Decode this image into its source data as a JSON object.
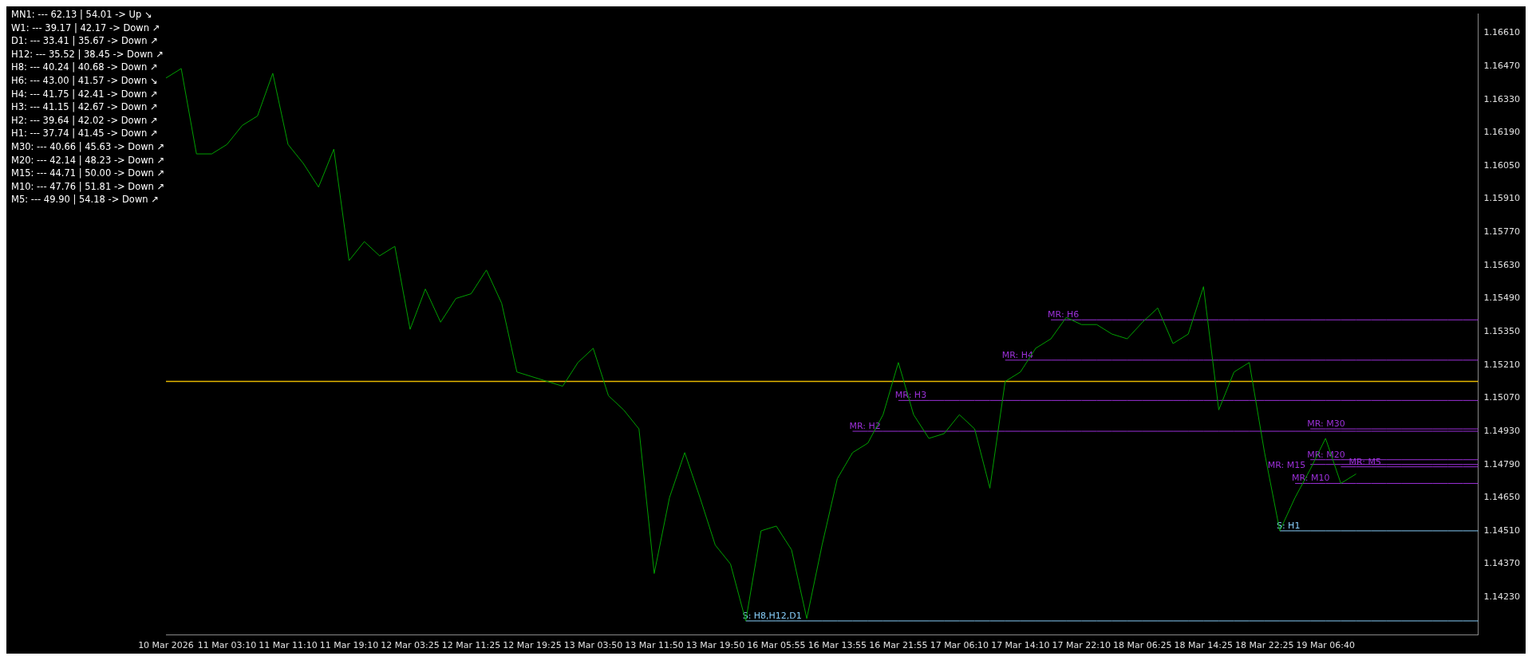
{
  "chart_data": {
    "type": "line",
    "marker": "none",
    "grid": false,
    "legend": false,
    "categories": [
      "10 Mar 2026",
      null,
      null,
      null,
      "11 Mar 03:10",
      null,
      null,
      null,
      "11 Mar 11:10",
      null,
      null,
      null,
      "11 Mar 19:10",
      null,
      null,
      null,
      "12 Mar 03:25",
      null,
      null,
      null,
      "12 Mar 11:25",
      null,
      null,
      null,
      "12 Mar 19:25",
      null,
      null,
      null,
      "13 Mar 03:50",
      null,
      null,
      null,
      "13 Mar 11:50",
      null,
      null,
      null,
      "13 Mar 19:50",
      null,
      null,
      null,
      "16 Mar 05:55",
      null,
      null,
      null,
      "16 Mar 13:55",
      null,
      null,
      null,
      "16 Mar 21:55",
      null,
      null,
      null,
      "17 Mar 06:10",
      null,
      null,
      null,
      "17 Mar 14:10",
      null,
      null,
      null,
      "17 Mar 22:10",
      null,
      null,
      null,
      "18 Mar 06:25",
      null,
      null,
      null,
      "18 Mar 14:25",
      null,
      null,
      null,
      "18 Mar 22:25",
      null,
      null,
      null,
      "19 Mar 06:40",
      null,
      null,
      null,
      null,
      null,
      null,
      null,
      null,
      null,
      null
    ],
    "ylim": [
      1.1407,
      1.1669
    ],
    "yticks": [
      {
        "value": 1.1423,
        "label": "1.14230"
      },
      {
        "value": 1.1437,
        "label": "1.14370"
      },
      {
        "value": 1.1451,
        "label": "1.14510"
      },
      {
        "value": 1.1465,
        "label": "1.14650"
      },
      {
        "value": 1.1479,
        "label": "1.14790"
      },
      {
        "value": 1.1493,
        "label": "1.14930"
      },
      {
        "value": 1.1507,
        "label": "1.15070"
      },
      {
        "value": 1.1521,
        "label": "1.15210"
      },
      {
        "value": 1.1535,
        "label": "1.15350"
      },
      {
        "value": 1.1549,
        "label": "1.15490"
      },
      {
        "value": 1.1563,
        "label": "1.15630"
      },
      {
        "value": 1.1577,
        "label": "1.15770"
      },
      {
        "value": 1.1591,
        "label": "1.15910"
      },
      {
        "value": 1.1605,
        "label": "1.16050"
      },
      {
        "value": 1.1619,
        "label": "1.16190"
      },
      {
        "value": 1.1633,
        "label": "1.16330"
      },
      {
        "value": 1.1647,
        "label": "1.16470"
      },
      {
        "value": 1.1661,
        "label": "1.16610"
      }
    ],
    "series": [
      {
        "color": "#00a000",
        "values": [
          1.1642,
          1.1646,
          1.161,
          1.161,
          1.1614,
          1.1622,
          1.1626,
          1.1644,
          1.1614,
          1.1606,
          1.1596,
          1.1612,
          1.1565,
          1.1573,
          1.1567,
          1.1571,
          1.1536,
          1.1553,
          1.1539,
          1.1549,
          1.1551,
          1.1561,
          1.1547,
          1.1518,
          1.1516,
          1.1514,
          1.1512,
          1.1522,
          1.1528,
          1.1508,
          1.1502,
          1.1494,
          1.1433,
          1.1465,
          1.1484,
          1.1465,
          1.1445,
          1.1437,
          1.1413,
          1.1451,
          1.1453,
          1.1443,
          1.1414,
          1.1445,
          1.1473,
          1.1484,
          1.1488,
          1.15,
          1.1522,
          1.15,
          1.149,
          1.1492,
          1.15,
          1.1494,
          1.1469,
          1.1514,
          1.1518,
          1.1528,
          1.1532,
          1.1541,
          1.1538,
          1.1538,
          1.1534,
          1.1532,
          1.1539,
          1.1545,
          1.153,
          1.1534,
          1.1554,
          1.1502,
          1.1518,
          1.1522,
          1.1484,
          1.1451,
          1.1465,
          1.1477,
          1.149,
          1.1471,
          1.1475,
          null,
          null,
          null,
          null,
          null,
          null,
          null,
          null
        ]
      },
      {
        "name": "MR: H6",
        "color": "#9b30d8",
        "values": [
          null,
          null,
          null,
          null,
          null,
          null,
          null,
          null,
          null,
          null,
          null,
          null,
          null,
          null,
          null,
          null,
          null,
          null,
          null,
          null,
          null,
          null,
          null,
          null,
          null,
          null,
          null,
          null,
          null,
          null,
          null,
          null,
          null,
          null,
          null,
          null,
          null,
          null,
          null,
          null,
          null,
          null,
          null,
          null,
          null,
          null,
          null,
          null,
          null,
          null,
          null,
          null,
          null,
          null,
          null,
          null,
          null,
          null,
          1.154,
          1.154,
          1.154,
          1.154,
          1.154,
          1.154,
          1.154,
          1.154,
          1.154,
          1.154,
          1.154,
          1.154,
          1.154,
          1.154,
          1.154,
          1.154,
          1.154,
          1.154,
          1.154,
          1.154,
          1.154,
          1.154,
          1.154,
          1.154,
          1.154,
          1.154,
          1.154,
          1.154,
          1.154
        ]
      },
      {
        "name": "MR: H4",
        "color": "#9b30d8",
        "values": [
          null,
          null,
          null,
          null,
          null,
          null,
          null,
          null,
          null,
          null,
          null,
          null,
          null,
          null,
          null,
          null,
          null,
          null,
          null,
          null,
          null,
          null,
          null,
          null,
          null,
          null,
          null,
          null,
          null,
          null,
          null,
          null,
          null,
          null,
          null,
          null,
          null,
          null,
          null,
          null,
          null,
          null,
          null,
          null,
          null,
          null,
          null,
          null,
          null,
          null,
          null,
          null,
          null,
          null,
          null,
          1.1523,
          1.1523,
          1.1523,
          1.1523,
          1.1523,
          1.1523,
          1.1523,
          1.1523,
          1.1523,
          1.1523,
          1.1523,
          1.1523,
          1.1523,
          1.1523,
          1.1523,
          1.1523,
          1.1523,
          1.1523,
          1.1523,
          1.1523,
          1.1523,
          1.1523,
          1.1523,
          1.1523,
          1.1523,
          1.1523,
          1.1523,
          1.1523,
          1.1523,
          1.1523,
          1.1523,
          1.1523
        ]
      },
      {
        "name": "MR: H3",
        "color": "#9b30d8",
        "values": [
          null,
          null,
          null,
          null,
          null,
          null,
          null,
          null,
          null,
          null,
          null,
          null,
          null,
          null,
          null,
          null,
          null,
          null,
          null,
          null,
          null,
          null,
          null,
          null,
          null,
          null,
          null,
          null,
          null,
          null,
          null,
          null,
          null,
          null,
          null,
          null,
          null,
          null,
          null,
          null,
          null,
          null,
          null,
          null,
          null,
          null,
          null,
          null,
          1.1506,
          1.1506,
          1.1506,
          1.1506,
          1.1506,
          1.1506,
          1.1506,
          1.1506,
          1.1506,
          1.1506,
          1.1506,
          1.1506,
          1.1506,
          1.1506,
          1.1506,
          1.1506,
          1.1506,
          1.1506,
          1.1506,
          1.1506,
          1.1506,
          1.1506,
          1.1506,
          1.1506,
          1.1506,
          1.1506,
          1.1506,
          1.1506,
          1.1506,
          1.1506,
          1.1506,
          1.1506,
          1.1506,
          1.1506,
          1.1506,
          1.1506,
          1.1506,
          1.1506,
          1.1506
        ]
      },
      {
        "name": "MR: H2",
        "color": "#9b30d8",
        "values": [
          null,
          null,
          null,
          null,
          null,
          null,
          null,
          null,
          null,
          null,
          null,
          null,
          null,
          null,
          null,
          null,
          null,
          null,
          null,
          null,
          null,
          null,
          null,
          null,
          null,
          null,
          null,
          null,
          null,
          null,
          null,
          null,
          null,
          null,
          null,
          null,
          null,
          null,
          null,
          null,
          null,
          null,
          null,
          null,
          null,
          1.1493,
          1.1493,
          1.1493,
          1.1493,
          1.1493,
          1.1493,
          1.1493,
          1.1493,
          1.1493,
          1.1493,
          1.1493,
          1.1493,
          1.1493,
          1.1493,
          1.1493,
          1.1493,
          1.1493,
          1.1493,
          1.1493,
          1.1493,
          1.1493,
          1.1493,
          1.1493,
          1.1493,
          1.1493,
          1.1493,
          1.1493,
          1.1493,
          1.1493,
          1.1493,
          1.1493,
          1.1493,
          1.1493,
          1.1493,
          1.1493,
          1.1493,
          1.1493,
          1.1493,
          1.1493,
          1.1493,
          1.1493,
          1.1493
        ]
      },
      {
        "name": "MR: M30",
        "color": "#9b30d8",
        "values": [
          null,
          null,
          null,
          null,
          null,
          null,
          null,
          null,
          null,
          null,
          null,
          null,
          null,
          null,
          null,
          null,
          null,
          null,
          null,
          null,
          null,
          null,
          null,
          null,
          null,
          null,
          null,
          null,
          null,
          null,
          null,
          null,
          null,
          null,
          null,
          null,
          null,
          null,
          null,
          null,
          null,
          null,
          null,
          null,
          null,
          null,
          null,
          null,
          null,
          null,
          null,
          null,
          null,
          null,
          null,
          null,
          null,
          null,
          null,
          null,
          null,
          null,
          null,
          null,
          null,
          null,
          null,
          null,
          null,
          null,
          null,
          null,
          null,
          null,
          null,
          1.1494,
          1.1494,
          1.1494,
          1.1494,
          1.1494,
          1.1494,
          1.1494,
          1.1494,
          1.1494,
          1.1494,
          1.1494,
          1.1494
        ]
      },
      {
        "name": "MR: M20",
        "color": "#9b30d8",
        "values": [
          null,
          null,
          null,
          null,
          null,
          null,
          null,
          null,
          null,
          null,
          null,
          null,
          null,
          null,
          null,
          null,
          null,
          null,
          null,
          null,
          null,
          null,
          null,
          null,
          null,
          null,
          null,
          null,
          null,
          null,
          null,
          null,
          null,
          null,
          null,
          null,
          null,
          null,
          null,
          null,
          null,
          null,
          null,
          null,
          null,
          null,
          null,
          null,
          null,
          null,
          null,
          null,
          null,
          null,
          null,
          null,
          null,
          null,
          null,
          null,
          null,
          null,
          null,
          null,
          null,
          null,
          null,
          null,
          null,
          null,
          null,
          null,
          null,
          null,
          null,
          1.1481,
          1.1481,
          1.1481,
          1.1481,
          1.1481,
          1.1481,
          1.1481,
          1.1481,
          1.1481,
          1.1481,
          1.1481,
          1.1481
        ]
      },
      {
        "name": "MR: M15",
        "color": "#9b30d8",
        "values": [
          null,
          null,
          null,
          null,
          null,
          null,
          null,
          null,
          null,
          null,
          null,
          null,
          null,
          null,
          null,
          null,
          null,
          null,
          null,
          null,
          null,
          null,
          null,
          null,
          null,
          null,
          null,
          null,
          null,
          null,
          null,
          null,
          null,
          null,
          null,
          null,
          null,
          null,
          null,
          null,
          null,
          null,
          null,
          null,
          null,
          null,
          null,
          null,
          null,
          null,
          null,
          null,
          null,
          null,
          null,
          null,
          null,
          null,
          null,
          null,
          null,
          null,
          null,
          null,
          null,
          null,
          null,
          null,
          null,
          null,
          null,
          null,
          null,
          null,
          null,
          1.1479,
          1.1479,
          1.1479,
          1.1479,
          1.1479,
          1.1479,
          1.1479,
          1.1479,
          1.1479,
          1.1479,
          1.1479,
          1.1479
        ]
      },
      {
        "name": "MR: M5",
        "color": "#9b30d8",
        "values": [
          null,
          null,
          null,
          null,
          null,
          null,
          null,
          null,
          null,
          null,
          null,
          null,
          null,
          null,
          null,
          null,
          null,
          null,
          null,
          null,
          null,
          null,
          null,
          null,
          null,
          null,
          null,
          null,
          null,
          null,
          null,
          null,
          null,
          null,
          null,
          null,
          null,
          null,
          null,
          null,
          null,
          null,
          null,
          null,
          null,
          null,
          null,
          null,
          null,
          null,
          null,
          null,
          null,
          null,
          null,
          null,
          null,
          null,
          null,
          null,
          null,
          null,
          null,
          null,
          null,
          null,
          null,
          null,
          null,
          null,
          null,
          null,
          null,
          null,
          null,
          null,
          null,
          1.1478,
          1.1478,
          1.1478,
          1.1478,
          1.1478,
          1.1478,
          1.1478,
          1.1478,
          1.1478,
          1.1478
        ]
      },
      {
        "name": "MR: M10",
        "color": "#9b30d8",
        "values": [
          null,
          null,
          null,
          null,
          null,
          null,
          null,
          null,
          null,
          null,
          null,
          null,
          null,
          null,
          null,
          null,
          null,
          null,
          null,
          null,
          null,
          null,
          null,
          null,
          null,
          null,
          null,
          null,
          null,
          null,
          null,
          null,
          null,
          null,
          null,
          null,
          null,
          null,
          null,
          null,
          null,
          null,
          null,
          null,
          null,
          null,
          null,
          null,
          null,
          null,
          null,
          null,
          null,
          null,
          null,
          null,
          null,
          null,
          null,
          null,
          null,
          null,
          null,
          null,
          null,
          null,
          null,
          null,
          null,
          null,
          null,
          null,
          null,
          null,
          1.1471,
          1.1471,
          1.1471,
          1.1471,
          1.1471,
          1.1471,
          1.1471,
          1.1471,
          1.1471,
          1.1471,
          1.1471,
          1.1471,
          1.1471
        ]
      },
      {
        "name": "S: H1",
        "color": "#87cefa",
        "values": [
          null,
          null,
          null,
          null,
          null,
          null,
          null,
          null,
          null,
          null,
          null,
          null,
          null,
          null,
          null,
          null,
          null,
          null,
          null,
          null,
          null,
          null,
          null,
          null,
          null,
          null,
          null,
          null,
          null,
          null,
          null,
          null,
          null,
          null,
          null,
          null,
          null,
          null,
          null,
          null,
          null,
          null,
          null,
          null,
          null,
          null,
          null,
          null,
          null,
          null,
          null,
          null,
          null,
          null,
          null,
          null,
          null,
          null,
          null,
          null,
          null,
          null,
          null,
          null,
          null,
          null,
          null,
          null,
          null,
          null,
          null,
          null,
          null,
          1.1451,
          1.1451,
          1.1451,
          1.1451,
          1.1451,
          1.1451,
          1.1451,
          1.1451,
          1.1451,
          1.1451,
          1.1451,
          1.1451,
          1.1451,
          1.1451
        ]
      },
      {
        "name": "S: H8,H12,D1",
        "color": "#87cefa",
        "values": [
          null,
          null,
          null,
          null,
          null,
          null,
          null,
          null,
          null,
          null,
          null,
          null,
          null,
          null,
          null,
          null,
          null,
          null,
          null,
          null,
          null,
          null,
          null,
          null,
          null,
          null,
          null,
          null,
          null,
          null,
          null,
          null,
          null,
          null,
          null,
          null,
          null,
          null,
          1.1413,
          1.1413,
          1.1413,
          1.1413,
          1.1413,
          1.1413,
          1.1413,
          1.1413,
          1.1413,
          1.1413,
          1.1413,
          1.1413,
          1.1413,
          1.1413,
          1.1413,
          1.1413,
          1.1413,
          1.1413,
          1.1413,
          1.1413,
          1.1413,
          1.1413,
          1.1413,
          1.1413,
          1.1413,
          1.1413,
          1.1413,
          1.1413,
          1.1413,
          1.1413,
          1.1413,
          1.1413,
          1.1413,
          1.1413,
          1.1413,
          1.1413,
          1.1413,
          1.1413,
          1.1413,
          1.1413,
          1.1413,
          1.1413,
          1.1413,
          1.1413,
          1.1413,
          1.1413,
          1.1413,
          1.1413,
          1.1413
        ]
      }
    ],
    "ref_lines": [
      {
        "axis": "y",
        "value": 1.1514,
        "color": "#e6b800"
      }
    ],
    "annotations": [
      "MN1: --- 62.13 | 54.01 -> Up ↘",
      "W1: --- 39.17 | 42.17 -> Down ↗",
      "D1: --- 33.41 | 35.67 -> Down ↗",
      "H12: --- 35.52 | 38.45 -> Down ↗",
      "H8: --- 40.24 | 40.68 -> Down ↗",
      "H6: --- 43.00 | 41.57 -> Down ↘",
      "H4: --- 41.75 | 42.41 -> Down ↗",
      "H3: --- 41.15 | 42.67 -> Down ↗",
      "H2: --- 39.64 | 42.02 -> Down ↗",
      "H1: --- 37.74 | 41.45 -> Down ↗",
      "M30: --- 40.66 | 45.63 -> Down ↗",
      "M20: --- 42.14 | 48.23 -> Down ↗",
      "M15: --- 44.71 | 50.00 -> Down ↗",
      "M10: --- 47.76 | 51.81 -> Down ↗",
      "M5: --- 49.90 | 54.18 -> Down ↗"
    ]
  }
}
